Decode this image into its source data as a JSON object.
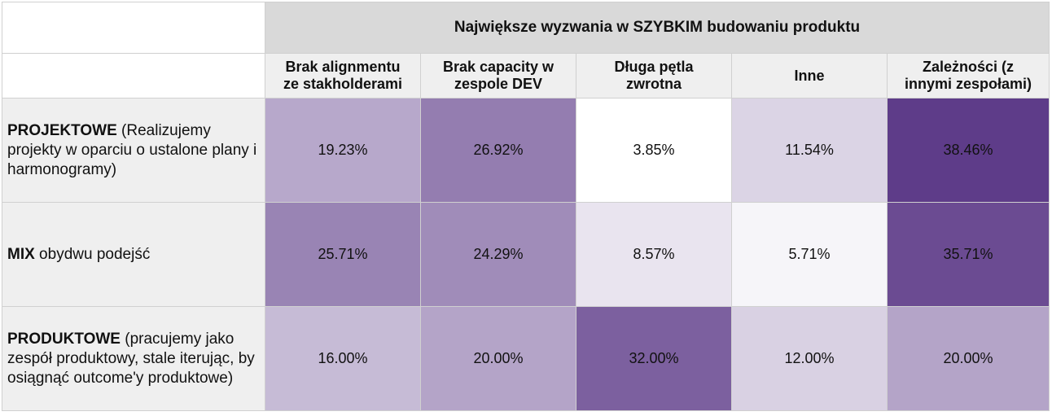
{
  "chart_data": {
    "type": "heatmap",
    "title": "Największe wyzwania w SZYBKIM budowaniu produktu",
    "columns": [
      "Brak alignmentu ze stakholderami",
      "Brak capacity w zespole DEV",
      "Długa pętla zwrotna",
      "Inne",
      "Zależności (z innymi zespołami)"
    ],
    "columns_lines": [
      [
        "Brak alignmentu",
        "ze stakholderami"
      ],
      [
        "Brak capacity w",
        "zespole DEV"
      ],
      [
        "Długa pętla",
        "zwrotna"
      ],
      [
        "Inne"
      ],
      [
        "Zależności (z",
        "innymi zespołami)"
      ]
    ],
    "rows": [
      {
        "bold": "PROJEKTOWE",
        "rest": " (Realizujemy projekty w oparciu o ustalone plany i harmonogramy)"
      },
      {
        "bold": "MIX",
        "rest": " obydwu podejść"
      },
      {
        "bold": "PRODUKTOWE",
        "rest": " (pracujemy jako zespół produktowy, stale iterując, by osiągnąć outcome'y produktowe)"
      }
    ],
    "values": [
      [
        19.23,
        26.92,
        3.85,
        11.54,
        38.46
      ],
      [
        25.71,
        24.29,
        8.57,
        5.71,
        35.71
      ],
      [
        16.0,
        20.0,
        32.0,
        12.0,
        20.0
      ]
    ],
    "labels": [
      [
        "19.23%",
        "26.92%",
        "3.85%",
        "11.54%",
        "38.46%"
      ],
      [
        "25.71%",
        "24.29%",
        "8.57%",
        "5.71%",
        "35.71%"
      ],
      [
        "16.00%",
        "20.00%",
        "32.00%",
        "12.00%",
        "20.00%"
      ]
    ],
    "color_scale": {
      "low": "#ffffff",
      "high": "#5e3c89"
    }
  }
}
